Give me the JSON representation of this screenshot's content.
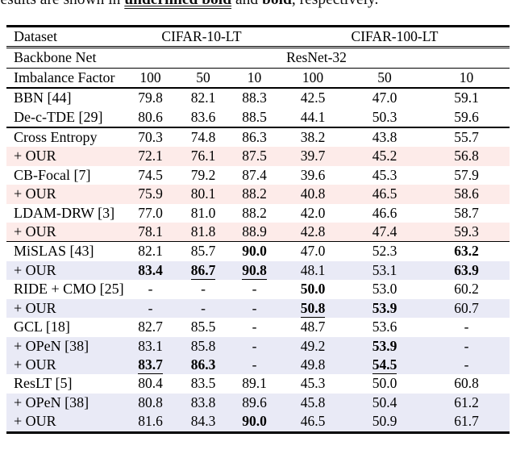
{
  "caption": {
    "prefix": "results are shown in ",
    "underlined_bold": "underlined bold",
    "mid": " and ",
    "bold_word": "bold",
    "suffix": ", respectively."
  },
  "colors": {
    "our_row_pink": "#fdebe9",
    "our_row_lavender": "#e9eaf6",
    "rule_black": "#000000"
  },
  "table": {
    "header": {
      "dataset_label": "Dataset",
      "group1": "CIFAR-10-LT",
      "group2": "CIFAR-100-LT",
      "backbone_label": "Backbone Net",
      "backbone_value": "ResNet-32",
      "imbalance_label": "Imbalance Factor",
      "imbalance_factors": [
        "100",
        "50",
        "10",
        "100",
        "50",
        "10"
      ]
    },
    "sections": [
      {
        "rows": [
          {
            "label": "BBN [44]",
            "bg": "plain",
            "cells": [
              "79.8",
              "82.1",
              "88.3",
              "42.5",
              "47.0",
              "59.1"
            ]
          },
          {
            "label": "De-c-TDE [29]",
            "bg": "plain",
            "cells": [
              "80.6",
              "83.6",
              "88.5",
              "44.1",
              "50.3",
              "59.6"
            ]
          }
        ]
      },
      {
        "rows": [
          {
            "label": "Cross Entropy",
            "bg": "plain",
            "cells": [
              "70.3",
              "74.8",
              "86.3",
              "38.2",
              "43.8",
              "55.7"
            ]
          },
          {
            "label": "+ OUR",
            "bg": "pink",
            "cells": [
              "72.1",
              "76.1",
              "87.5",
              "39.7",
              "45.2",
              "56.8"
            ]
          },
          {
            "label": "CB-Focal [7]",
            "bg": "plain",
            "cells": [
              "74.5",
              "79.2",
              "87.4",
              "39.6",
              "45.3",
              "57.9"
            ]
          },
          {
            "label": "+ OUR",
            "bg": "pink",
            "cells": [
              "75.9",
              "80.1",
              "88.2",
              "40.8",
              "46.5",
              "58.6"
            ]
          },
          {
            "label": "LDAM-DRW [3]",
            "bg": "plain",
            "cells": [
              "77.0",
              "81.0",
              "88.2",
              "42.0",
              "46.6",
              "58.7"
            ]
          },
          {
            "label": "+ OUR",
            "bg": "pink",
            "cells": [
              "78.1",
              "81.8",
              "88.9",
              "42.8",
              "47.4",
              "59.3"
            ]
          }
        ]
      },
      {
        "rows": [
          {
            "label": "MiSLAS [43]",
            "bg": "plain",
            "cells": [
              "82.1",
              "85.7",
              {
                "t": "90.0",
                "b": true
              },
              "47.0",
              "52.3",
              {
                "t": "63.2",
                "b": true
              }
            ]
          },
          {
            "label": "+ OUR",
            "bg": "lav",
            "cells": [
              {
                "t": "83.4",
                "b": true
              },
              {
                "t": "86.7",
                "b": true,
                "u": true
              },
              {
                "t": "90.8",
                "b": true,
                "u": true
              },
              "48.1",
              "53.1",
              {
                "t": "63.9",
                "b": true
              }
            ]
          },
          {
            "label": "RIDE + CMO [25]",
            "bg": "plain",
            "cells": [
              "-",
              "-",
              "-",
              {
                "t": "50.0",
                "b": true
              },
              "53.0",
              "60.2"
            ]
          },
          {
            "label": "+ OUR",
            "bg": "lav",
            "cells": [
              "-",
              "-",
              "-",
              {
                "t": "50.8",
                "b": true,
                "u": true
              },
              {
                "t": "53.9",
                "b": true
              },
              "60.7"
            ]
          },
          {
            "label": "GCL [18]",
            "bg": "plain",
            "cells": [
              "82.7",
              "85.5",
              "-",
              "48.7",
              "53.6",
              "-"
            ]
          },
          {
            "label": "+ OPeN [38]",
            "bg": "lav",
            "cells": [
              "83.1",
              "85.8",
              "-",
              "49.2",
              {
                "t": "53.9",
                "b": true
              },
              "-"
            ]
          },
          {
            "label": "+ OUR",
            "bg": "lav",
            "cells": [
              {
                "t": "83.7",
                "b": true,
                "u": true
              },
              {
                "t": "86.3",
                "b": true
              },
              "-",
              "49.8",
              {
                "t": "54.5",
                "b": true,
                "u": true
              },
              "-"
            ]
          },
          {
            "label": "ResLT [5]",
            "bg": "plain",
            "cells": [
              "80.4",
              "83.5",
              "89.1",
              "45.3",
              "50.0",
              "60.8"
            ]
          },
          {
            "label": "+ OPeN [38]",
            "bg": "lav",
            "cells": [
              "80.8",
              "83.8",
              "89.6",
              "45.8",
              "50.4",
              "61.2"
            ]
          },
          {
            "label": "+ OUR",
            "bg": "lav",
            "cells": [
              "81.6",
              "84.3",
              {
                "t": "90.0",
                "b": true
              },
              "46.5",
              "50.9",
              "61.7"
            ]
          }
        ]
      }
    ]
  }
}
